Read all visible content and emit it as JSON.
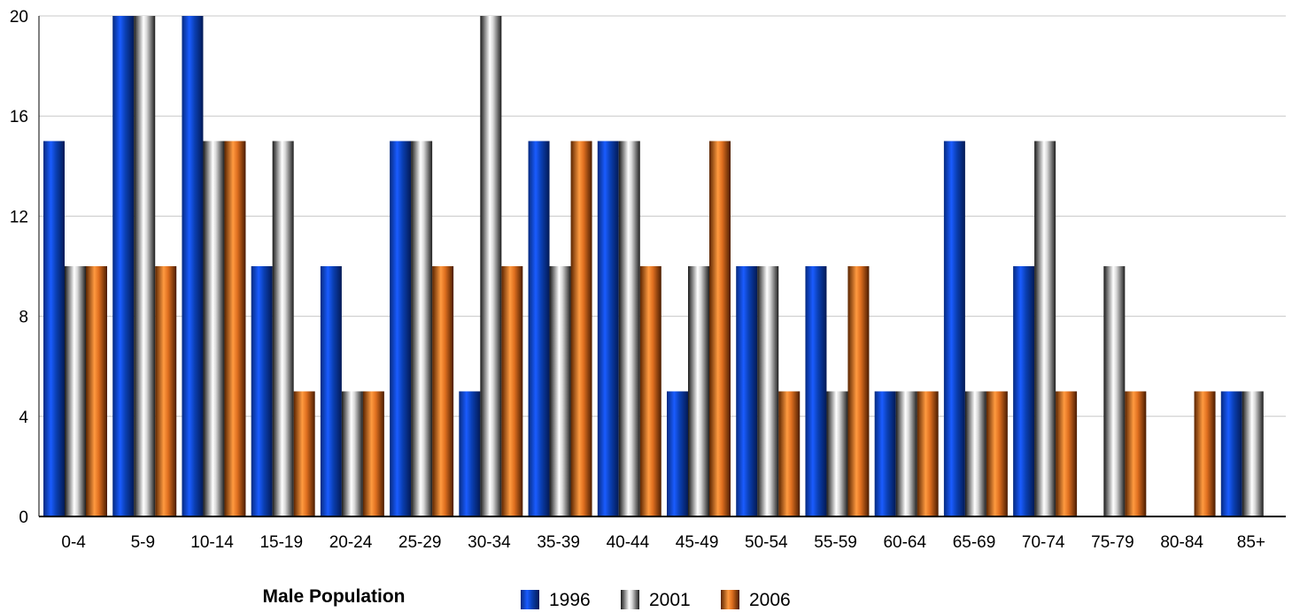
{
  "chart_data": {
    "type": "bar",
    "title": "Male Population",
    "categories": [
      "0-4",
      "5-9",
      "10-14",
      "15-19",
      "20-24",
      "25-29",
      "30-34",
      "35-39",
      "40-44",
      "45-49",
      "50-54",
      "55-59",
      "60-64",
      "65-69",
      "70-74",
      "75-79",
      "80-84",
      "85+"
    ],
    "series": [
      {
        "name": "1996",
        "color": "#0a3fb3",
        "values": [
          15,
          20,
          20,
          10,
          10,
          15,
          5,
          15,
          15,
          5,
          10,
          10,
          5,
          15,
          10,
          0,
          0,
          5
        ]
      },
      {
        "name": "2001",
        "color": "#9a9a9a",
        "values": [
          10,
          20,
          15,
          15,
          5,
          15,
          20,
          10,
          15,
          10,
          10,
          5,
          5,
          5,
          15,
          10,
          0,
          5
        ]
      },
      {
        "name": "2006",
        "color": "#e07020",
        "values": [
          10,
          10,
          15,
          5,
          5,
          10,
          10,
          15,
          10,
          15,
          5,
          10,
          5,
          5,
          5,
          5,
          5,
          0
        ]
      }
    ],
    "yticks": [
      0,
      4,
      8,
      12,
      16,
      20
    ],
    "ylim": [
      0,
      20
    ],
    "grid": true,
    "legend_position": "bottom"
  }
}
